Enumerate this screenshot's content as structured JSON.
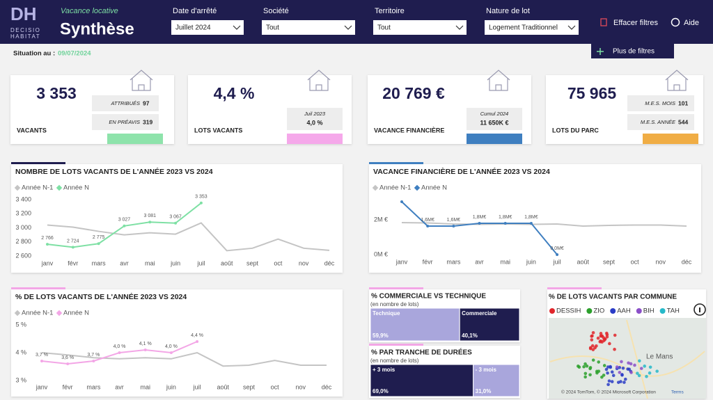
{
  "header": {
    "logo": "DH",
    "brand_lines": [
      "DECISIO",
      "HABITAT"
    ],
    "subtitle": "Vacance locative",
    "title": "Synthèse"
  },
  "filters": [
    {
      "label": "Date d'arrêté",
      "value": "Juillet 2024"
    },
    {
      "label": "Société",
      "value": "Tout"
    },
    {
      "label": "Territoire",
      "value": "Tout"
    },
    {
      "label": "Nature de lot",
      "value": "Logement Traditionnel"
    }
  ],
  "actions": {
    "clear": "Effacer filtres",
    "help": "Aide",
    "more": "Plus de filtres"
  },
  "situation": {
    "label": "Situation au :",
    "date": "09/07/2024"
  },
  "kpis": [
    {
      "value": "3 353",
      "label": "VACANTS",
      "color": "#8ee3ab",
      "details": [
        {
          "label": "ATTRIBUÉS",
          "value": "97"
        },
        {
          "label": "EN PRÉAVIS",
          "value": "319"
        }
      ]
    },
    {
      "value": "4,4 %",
      "label": "LOTS VACANTS",
      "color": "#f5a8ea",
      "details": [
        {
          "label": "Juil 2023",
          "value": "4,0 %"
        }
      ]
    },
    {
      "value": "20 769 €",
      "label": "VACANCE FINANCIÈRE",
      "color": "#3f7fc0",
      "details": [
        {
          "label": "Cumul 2024",
          "value": "11 650K €"
        }
      ]
    },
    {
      "value": "75 965",
      "label": "LOTS DU PARC",
      "color": "#f0ad45",
      "details": [
        {
          "label": "M.E.S. MOIS",
          "value": "101"
        },
        {
          "label": "M.E.S. ANNÉE",
          "value": "544"
        }
      ]
    }
  ],
  "charts": [
    {
      "type": "line",
      "title": "NOMBRE DE LOTS VACANTS DE L'ANNÉE 2023 VS 2024",
      "categories": [
        "janv",
        "févr",
        "mars",
        "avr",
        "mai",
        "juin",
        "juil",
        "août",
        "sept",
        "oct",
        "nov",
        "déc"
      ],
      "series": [
        {
          "name": "Année N-1",
          "color": "#c4c4c4",
          "values": [
            3040,
            3010,
            2950,
            2900,
            2930,
            2910,
            3070,
            2675,
            2710,
            2840,
            2710,
            2680
          ]
        },
        {
          "name": "Année N",
          "color": "#7ee0a4",
          "values": [
            2766,
            2724,
            2775,
            3027,
            3081,
            3067,
            3353,
            null,
            null,
            null,
            null,
            null
          ],
          "value_labels": [
            "2 766",
            "2 724",
            "2 775",
            "3 027",
            "3 081",
            "3 067",
            "3 353",
            null,
            null,
            null,
            null,
            null
          ]
        }
      ],
      "ylim": [
        2550,
        3450
      ],
      "yticks": [
        {
          "value": 2600,
          "label": "2 600"
        },
        {
          "value": 2800,
          "label": "2 800"
        },
        {
          "value": 3000,
          "label": "3 000"
        },
        {
          "value": 3200,
          "label": "3 200"
        },
        {
          "value": 3400,
          "label": "3 400"
        }
      ]
    },
    {
      "type": "line",
      "title": "VACANCE FINANCIÈRE DE L'ANNÉE 2023 VS 2024",
      "categories": [
        "janv",
        "févr",
        "mars",
        "avr",
        "mai",
        "juin",
        "juil",
        "août",
        "sept",
        "oct",
        "nov",
        "déc"
      ],
      "series": [
        {
          "name": "Année N-1",
          "color": "#c4c4c4",
          "values": [
            1.84,
            1.82,
            1.76,
            1.74,
            1.76,
            1.74,
            1.76,
            1.64,
            1.68,
            1.7,
            1.7,
            1.64
          ]
        },
        {
          "name": "Année N",
          "color": "#3f7fc0",
          "values": [
            3.04,
            1.64,
            1.64,
            1.8,
            1.8,
            1.8,
            0.0,
            null,
            null,
            null,
            null,
            null
          ],
          "value_labels": [
            null,
            "1,6M€",
            "1,6M€",
            "1,8M€",
            "1,8M€",
            "1,8M€",
            "0,0M€",
            null,
            null,
            null,
            null,
            null
          ]
        }
      ],
      "ylim": [
        -0.2,
        3.4
      ],
      "yticks": [
        {
          "value": 0,
          "label": "0M €"
        },
        {
          "value": 2,
          "label": "2M €"
        }
      ]
    },
    {
      "type": "line",
      "title": "% DE LOTS VACANTS DE L'ANNÉE 2023 VS 2024",
      "categories": [
        "janv",
        "févr",
        "mars",
        "avr",
        "mai",
        "juin",
        "juil",
        "août",
        "sept",
        "oct",
        "nov",
        "déc"
      ],
      "series": [
        {
          "name": "Année N-1",
          "color": "#c4c4c4",
          "values": [
            4.0,
            3.92,
            3.82,
            3.78,
            3.82,
            3.78,
            4.0,
            3.52,
            3.55,
            3.72,
            3.55,
            3.55
          ]
        },
        {
          "name": "Année N",
          "color": "#f3a6e6",
          "values": [
            3.7,
            3.6,
            3.7,
            4.0,
            4.1,
            4.0,
            4.4,
            null,
            null,
            null,
            null,
            null
          ],
          "value_labels": [
            "3,7 %",
            "3,6 %",
            "3,7 %",
            "4,0 %",
            "4,1 %",
            "4,0 %",
            "4,4 %",
            null,
            null,
            null,
            null,
            null
          ]
        }
      ],
      "ylim": [
        2.9,
        5.1
      ],
      "yticks": [
        {
          "value": 3,
          "label": "3 %"
        },
        {
          "value": 4,
          "label": "4 %"
        },
        {
          "value": 5,
          "label": "5 %"
        }
      ]
    }
  ],
  "splits": [
    {
      "title": "% COMMERCIALE VS TECHNIQUE",
      "subtitle": "(en nombre de lots)",
      "tiles": [
        {
          "name": "Technique",
          "value": 59.9,
          "value_label": "59,9%",
          "color": "#a9a6dc"
        },
        {
          "name": "Commerciale",
          "value": 40.1,
          "value_label": "40,1%",
          "color": "#1f1d4f"
        }
      ]
    },
    {
      "title": "% PAR TRANCHE DE DURÉES",
      "subtitle": "(en nombre de lots)",
      "tiles": [
        {
          "name": "+ 3 mois",
          "value": 69.0,
          "value_label": "69,0%",
          "color": "#1f1d4f"
        },
        {
          "name": "- 3 mois",
          "value": 31.0,
          "value_label": "31,0%",
          "color": "#a9a6dc"
        }
      ]
    }
  ],
  "map": {
    "title": "% DE LOTS VACANTS PAR COMMUNE",
    "legend": [
      {
        "name": "DESSIH",
        "color": "#e0262b"
      },
      {
        "name": "ZIO",
        "color": "#2ca02c"
      },
      {
        "name": "AAH",
        "color": "#2a3cc6"
      },
      {
        "name": "BIH",
        "color": "#8b4fc8"
      },
      {
        "name": "TAH",
        "color": "#26b9c9"
      }
    ],
    "place": "Le Mans",
    "attribution": "© 2024 TomTom, © 2024 Microsoft Corporation",
    "terms": "Terms"
  }
}
